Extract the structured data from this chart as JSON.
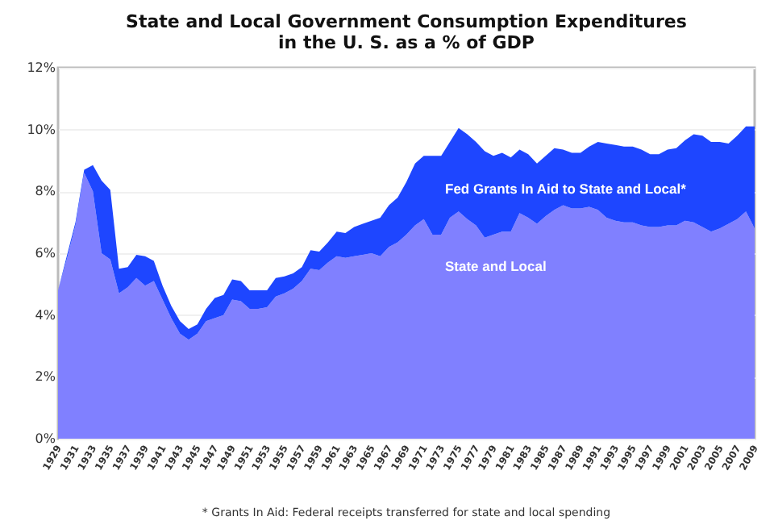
{
  "chart_data": {
    "type": "area",
    "stacked": true,
    "title": [
      "State and Local Government Consumption Expenditures",
      "in the U. S. as a % of GDP"
    ],
    "x": [
      1929,
      1930,
      1931,
      1932,
      1933,
      1934,
      1935,
      1936,
      1937,
      1938,
      1939,
      1940,
      1941,
      1942,
      1943,
      1944,
      1945,
      1946,
      1947,
      1948,
      1949,
      1950,
      1951,
      1952,
      1953,
      1954,
      1955,
      1956,
      1957,
      1958,
      1959,
      1960,
      1961,
      1962,
      1963,
      1964,
      1965,
      1966,
      1967,
      1968,
      1969,
      1970,
      1971,
      1972,
      1973,
      1974,
      1975,
      1976,
      1977,
      1978,
      1979,
      1980,
      1981,
      1982,
      1983,
      1984,
      1985,
      1986,
      1987,
      1988,
      1989,
      1990,
      1991,
      1992,
      1993,
      1994,
      1995,
      1996,
      1997,
      1998,
      1999,
      2000,
      2001,
      2002,
      2003,
      2004,
      2005,
      2006,
      2007,
      2008,
      2009
    ],
    "series": [
      {
        "name": "State and Local",
        "color": "#8080ff",
        "values": [
          4.8,
          5.8,
          6.9,
          8.6,
          8.0,
          6.0,
          5.8,
          4.7,
          4.9,
          5.2,
          4.95,
          5.1,
          4.5,
          3.9,
          3.4,
          3.2,
          3.4,
          3.8,
          3.9,
          4.0,
          4.5,
          4.45,
          4.2,
          4.2,
          4.25,
          4.6,
          4.7,
          4.85,
          5.1,
          5.5,
          5.45,
          5.7,
          5.9,
          5.85,
          5.9,
          5.95,
          6.0,
          5.9,
          6.2,
          6.35,
          6.6,
          6.9,
          7.1,
          6.6,
          6.6,
          7.15,
          7.35,
          7.1,
          6.9,
          6.5,
          6.6,
          6.7,
          6.7,
          7.3,
          7.15,
          6.95,
          7.2,
          7.4,
          7.55,
          7.45,
          7.45,
          7.5,
          7.4,
          7.15,
          7.05,
          7.0,
          7.0,
          6.9,
          6.85,
          6.85,
          6.9,
          6.9,
          7.05,
          7.0,
          6.85,
          6.7,
          6.8,
          6.95,
          7.1,
          7.35,
          6.8
        ]
      },
      {
        "name": "Fed Grants In Aid to State and Local*",
        "color": "#1e46ff",
        "values": [
          0,
          0.1,
          0.1,
          0.1,
          0.85,
          2.35,
          2.25,
          0.8,
          0.65,
          0.75,
          0.95,
          0.65,
          0.45,
          0.4,
          0.4,
          0.35,
          0.3,
          0.4,
          0.65,
          0.65,
          0.65,
          0.65,
          0.6,
          0.6,
          0.55,
          0.6,
          0.55,
          0.5,
          0.45,
          0.6,
          0.6,
          0.65,
          0.8,
          0.8,
          0.95,
          1.0,
          1.05,
          1.25,
          1.35,
          1.45,
          1.7,
          2.0,
          2.05,
          2.55,
          2.55,
          2.45,
          2.7,
          2.75,
          2.7,
          2.8,
          2.55,
          2.55,
          2.4,
          2.05,
          2.05,
          1.95,
          1.95,
          2.0,
          1.8,
          1.8,
          1.8,
          1.95,
          2.2,
          2.4,
          2.45,
          2.45,
          2.45,
          2.45,
          2.35,
          2.35,
          2.45,
          2.5,
          2.6,
          2.85,
          2.95,
          2.9,
          2.8,
          2.6,
          2.7,
          2.75,
          3.3
        ]
      }
    ],
    "xlim": [
      1929,
      2009
    ],
    "xticks": [
      1929,
      1931,
      1933,
      1935,
      1937,
      1939,
      1941,
      1943,
      1945,
      1947,
      1949,
      1951,
      1953,
      1955,
      1957,
      1959,
      1961,
      1963,
      1965,
      1967,
      1969,
      1971,
      1973,
      1975,
      1977,
      1979,
      1981,
      1983,
      1985,
      1987,
      1989,
      1991,
      1993,
      1995,
      1997,
      1999,
      2001,
      2003,
      2005,
      2007,
      2009
    ],
    "ylim": [
      0,
      12
    ],
    "yticks": [
      {
        "value": 0,
        "label": "0%"
      },
      {
        "value": 2,
        "label": "2%"
      },
      {
        "value": 4,
        "label": "4%"
      },
      {
        "value": 6,
        "label": "6%"
      },
      {
        "value": 8,
        "label": "8%"
      },
      {
        "value": 10,
        "label": "10%"
      },
      {
        "value": 12,
        "label": "12%"
      }
    ],
    "grid": "y",
    "annotations": [
      "* Grants In Aid: Federal receipts transferred for state and local spending"
    ]
  }
}
